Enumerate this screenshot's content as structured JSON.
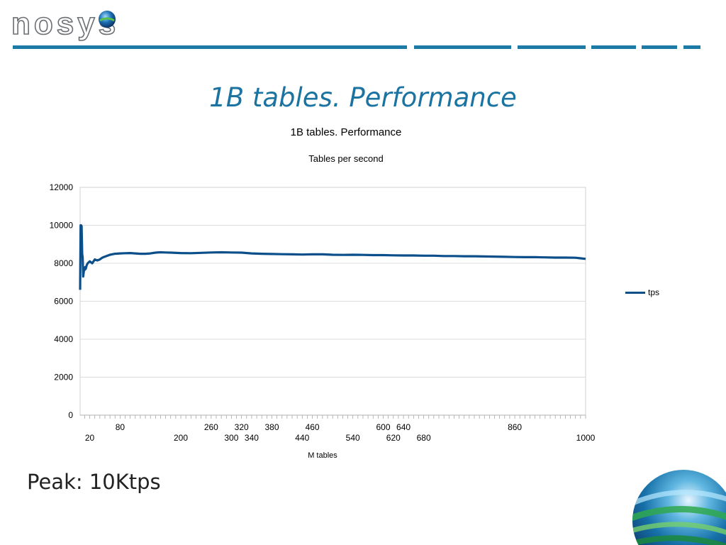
{
  "header": {
    "logo_text": "nosys",
    "rule_color": "#1b7aa6"
  },
  "slide": {
    "title": "1B tables. Performance",
    "footer_text": "Peak: 10Ktps",
    "accent_color": "#1a73a0"
  },
  "decor": {
    "logo_icon": "globe-icon",
    "corner_icon": "globe-icon"
  },
  "chart_data": {
    "type": "line",
    "title": "1B tables. Performance",
    "subtitle": "Tables per second",
    "xlabel": "M tables",
    "ylabel": "",
    "ylim": [
      0,
      12000
    ],
    "yticks": [
      "0",
      "2000",
      "4000",
      "6000",
      "8000",
      "10000",
      "12000"
    ],
    "xlim": [
      1,
      1000
    ],
    "xticklabels_upper": [
      {
        "x": 80,
        "label": "80"
      },
      {
        "x": 260,
        "label": "260"
      },
      {
        "x": 320,
        "label": "320"
      },
      {
        "x": 380,
        "label": "380"
      },
      {
        "x": 460,
        "label": "460"
      },
      {
        "x": 600,
        "label": "600"
      },
      {
        "x": 640,
        "label": "640"
      },
      {
        "x": 860,
        "label": "860"
      }
    ],
    "xticklabels_lower": [
      {
        "x": 20,
        "label": "20"
      },
      {
        "x": 200,
        "label": "200"
      },
      {
        "x": 300,
        "label": "300"
      },
      {
        "x": 340,
        "label": "340"
      },
      {
        "x": 440,
        "label": "440"
      },
      {
        "x": 540,
        "label": "540"
      },
      {
        "x": 620,
        "label": "620"
      },
      {
        "x": 680,
        "label": "680"
      },
      {
        "x": 1000,
        "label": "1000"
      }
    ],
    "grid": true,
    "legend": "right",
    "line_color": "#0b4f8a",
    "series": [
      {
        "name": "tps",
        "x": [
          1,
          2,
          3,
          4,
          5,
          6,
          7,
          8,
          9,
          10,
          11,
          12,
          14,
          16,
          18,
          20,
          25,
          30,
          35,
          40,
          45,
          50,
          60,
          70,
          80,
          90,
          100,
          110,
          120,
          130,
          140,
          150,
          160,
          170,
          180,
          200,
          220,
          240,
          260,
          280,
          300,
          320,
          340,
          360,
          380,
          400,
          420,
          440,
          460,
          480,
          500,
          520,
          540,
          560,
          580,
          600,
          620,
          640,
          660,
          680,
          700,
          720,
          740,
          760,
          780,
          800,
          820,
          840,
          860,
          880,
          900,
          920,
          940,
          960,
          980,
          990,
          1000
        ],
        "y": [
          6600,
          10000,
          10000,
          9950,
          8500,
          8300,
          7300,
          7500,
          7700,
          7650,
          7800,
          7700,
          7900,
          8000,
          8050,
          8100,
          8000,
          8200,
          8150,
          8200,
          8300,
          8350,
          8450,
          8500,
          8520,
          8530,
          8540,
          8520,
          8500,
          8500,
          8520,
          8560,
          8580,
          8570,
          8560,
          8540,
          8530,
          8550,
          8570,
          8580,
          8570,
          8560,
          8520,
          8500,
          8490,
          8480,
          8470,
          8460,
          8470,
          8470,
          8450,
          8440,
          8450,
          8440,
          8430,
          8430,
          8420,
          8410,
          8410,
          8400,
          8400,
          8380,
          8380,
          8370,
          8370,
          8360,
          8350,
          8340,
          8330,
          8320,
          8320,
          8310,
          8300,
          8300,
          8290,
          8260,
          8230
        ]
      }
    ]
  }
}
